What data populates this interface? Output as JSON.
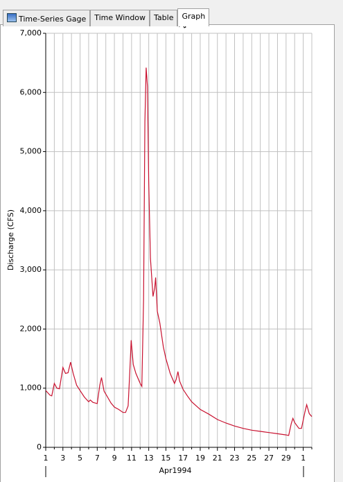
{
  "tabs": [
    "Time-Series Gage",
    "Time Window",
    "Table",
    "Graph"
  ],
  "selected_tab": "Graph",
  "chart_data": {
    "type": "line",
    "x_title": "Apr1994",
    "y_title": "Discharge (CFS)",
    "x": [
      1,
      1.5,
      1.7,
      2,
      2.3,
      2.6,
      3,
      3.3,
      3.6,
      3.9,
      4.2,
      4.6,
      5,
      5.5,
      6,
      6.2,
      6.5,
      7,
      7.3,
      7.5,
      7.8,
      8.2,
      8.6,
      9,
      9.5,
      10,
      10.3,
      10.6,
      10.8,
      10.95,
      11.2,
      11.5,
      12,
      12.2,
      12.4,
      12.55,
      12.7,
      12.85,
      13,
      13.2,
      13.5,
      13.7,
      13.8,
      14,
      14.3,
      14.7,
      15,
      15.5,
      16,
      16.2,
      16.4,
      16.6,
      17,
      17.5,
      18,
      19,
      20,
      21,
      22,
      23,
      24,
      25,
      26,
      27,
      28,
      29,
      29.3,
      29.6,
      29.8,
      30,
      30.5,
      30.8,
      31.2,
      31.4,
      31.7,
      32
    ],
    "values": [
      960,
      880,
      870,
      1080,
      1000,
      990,
      1350,
      1250,
      1260,
      1440,
      1250,
      1050,
      960,
      850,
      770,
      800,
      760,
      740,
      1050,
      1180,
      950,
      850,
      750,
      680,
      640,
      590,
      590,
      700,
      1300,
      1810,
      1400,
      1250,
      1080,
      1030,
      2500,
      5500,
      6420,
      6100,
      4500,
      3200,
      2550,
      2700,
      2870,
      2300,
      2100,
      1700,
      1500,
      1250,
      1080,
      1150,
      1280,
      1120,
      980,
      870,
      770,
      640,
      560,
      470,
      410,
      360,
      320,
      290,
      270,
      250,
      230,
      210,
      200,
      400,
      490,
      420,
      320,
      320,
      600,
      720,
      570,
      520
    ],
    "color": "#c8102e",
    "xlim": [
      1,
      32
    ],
    "xticks": [
      1,
      3,
      5,
      7,
      9,
      11,
      13,
      15,
      17,
      19,
      21,
      23,
      25,
      27,
      29,
      {
        "value": 31,
        "label": "1"
      }
    ],
    "x_minor_ticks": [
      2,
      4,
      6,
      8,
      10,
      12,
      14,
      16,
      18,
      20,
      22,
      24,
      26,
      28,
      30,
      32
    ],
    "ylim": [
      0,
      7000
    ],
    "yticks": [
      0,
      {
        "value": 1000,
        "label": "1,000"
      },
      {
        "value": 2000,
        "label": "2,000"
      },
      {
        "value": 3000,
        "label": "3,000"
      },
      {
        "value": 4000,
        "label": "4,000"
      },
      {
        "value": 5000,
        "label": "5,000"
      },
      {
        "value": 6000,
        "label": "6,000"
      },
      {
        "value": 7000,
        "label": "7,000"
      }
    ],
    "grid": true
  }
}
